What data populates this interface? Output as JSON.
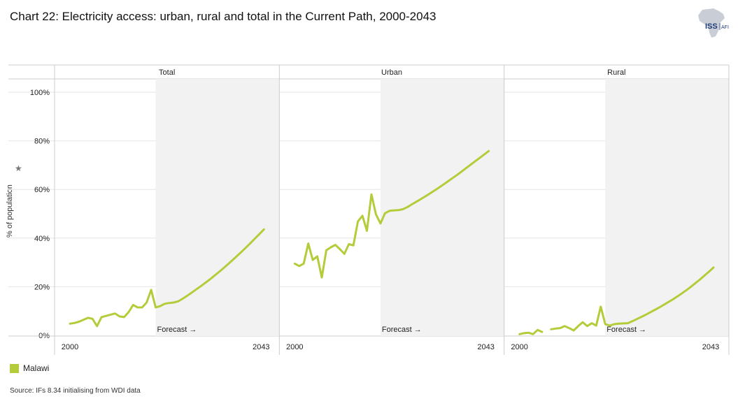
{
  "title": "Chart 22: Electricity access: urban, rural and total in the Current Path, 2000-2043",
  "logo": {
    "text_iss": "ISS",
    "text_afi": "AFI"
  },
  "ylabel": "% of population",
  "pin_icon": "pin-icon",
  "forecast_label": "Forecast →",
  "legend": [
    {
      "name": "Malawi",
      "color": "#b5cc3a"
    }
  ],
  "source": "Source: IFs 8.34 initialising from WDI data",
  "colors": {
    "series": "#b5cc3a",
    "forecast_band": "#f2f2f2",
    "grid": "#e6e6e6",
    "axis": "#cccccc"
  },
  "chart_data": {
    "type": "line",
    "ylim": [
      0,
      100
    ],
    "y_ticks": [
      "0%",
      "20%",
      "40%",
      "60%",
      "80%",
      "100%"
    ],
    "y_tick_values": [
      0,
      20,
      40,
      60,
      80,
      100
    ],
    "x_ticks": [
      "2000",
      "2043"
    ],
    "forecast_start": 2019,
    "panels": [
      {
        "name": "Total",
        "series": [
          {
            "name": "Malawi",
            "x": [
              2000,
              2001,
              2002,
              2003,
              2004,
              2005,
              2006,
              2007,
              2008,
              2009,
              2010,
              2011,
              2012,
              2013,
              2014,
              2015,
              2016,
              2017,
              2018,
              2019,
              2020,
              2021,
              2022,
              2023,
              2024,
              2025,
              2026,
              2027,
              2028,
              2029,
              2030,
              2031,
              2032,
              2033,
              2034,
              2035,
              2036,
              2037,
              2038,
              2039,
              2040,
              2041,
              2042,
              2043
            ],
            "y": [
              4.8,
              5.1,
              5.6,
              6.4,
              7.2,
              6.8,
              3.8,
              7.5,
              8.0,
              8.5,
              9.0,
              7.8,
              7.5,
              9.5,
              12.5,
              11.5,
              11.5,
              13.5,
              18.7,
              11.5,
              12.0,
              13.0,
              13.3,
              13.5,
              14.0,
              15.1,
              16.3,
              17.6,
              18.9,
              20.2,
              21.6,
              23.0,
              24.5,
              26.0,
              27.6,
              29.2,
              30.9,
              32.6,
              34.3,
              36.1,
              37.9,
              39.8,
              41.7,
              43.6
            ]
          }
        ]
      },
      {
        "name": "Urban",
        "series": [
          {
            "name": "Malawi",
            "x": [
              2000,
              2001,
              2002,
              2003,
              2004,
              2005,
              2006,
              2007,
              2008,
              2009,
              2010,
              2011,
              2012,
              2013,
              2014,
              2015,
              2016,
              2017,
              2018,
              2019,
              2020,
              2021,
              2022,
              2023,
              2024,
              2025,
              2026,
              2027,
              2028,
              2029,
              2030,
              2031,
              2032,
              2033,
              2034,
              2035,
              2036,
              2037,
              2038,
              2039,
              2040,
              2041,
              2042,
              2043
            ],
            "y": [
              29.5,
              28.5,
              29.5,
              37.8,
              31.0,
              32.5,
              23.8,
              35.0,
              36.2,
              37.2,
              35.5,
              33.5,
              37.5,
              37.0,
              46.8,
              49.2,
              43.0,
              58.0,
              49.8,
              46.0,
              50.2,
              51.2,
              51.4,
              51.5,
              51.9,
              52.8,
              53.9,
              55.0,
              56.1,
              57.2,
              58.4,
              59.6,
              60.8,
              62.1,
              63.4,
              64.7,
              66.0,
              67.4,
              68.8,
              70.2,
              71.6,
              73.0,
              74.4,
              75.8
            ]
          }
        ]
      },
      {
        "name": "Rural",
        "series": [
          {
            "name": "Malawi",
            "x": [
              2000,
              2001,
              2002,
              2003,
              2004,
              2005
            ],
            "y": [
              0.5,
              0.9,
              1.1,
              0.5,
              2.2,
              1.4
            ]
          },
          {
            "name": "Malawi",
            "x": [
              2007,
              2008,
              2009,
              2010,
              2011,
              2012,
              2013,
              2014,
              2015,
              2016,
              2017,
              2018,
              2019,
              2020,
              2021,
              2022,
              2023,
              2024,
              2025,
              2026,
              2027,
              2028,
              2029,
              2030,
              2031,
              2032,
              2033,
              2034,
              2035,
              2036,
              2037,
              2038,
              2039,
              2040,
              2041,
              2042,
              2043
            ],
            "y": [
              2.5,
              2.8,
              3.0,
              3.8,
              3.0,
              2.0,
              3.8,
              5.4,
              3.8,
              5.0,
              4.0,
              11.8,
              4.6,
              4.0,
              4.6,
              4.8,
              4.9,
              5.0,
              5.8,
              6.7,
              7.6,
              8.5,
              9.5,
              10.5,
              11.5,
              12.6,
              13.7,
              14.8,
              16.0,
              17.3,
              18.6,
              20.0,
              21.5,
              23.0,
              24.6,
              26.2,
              27.9
            ]
          }
        ]
      }
    ]
  }
}
